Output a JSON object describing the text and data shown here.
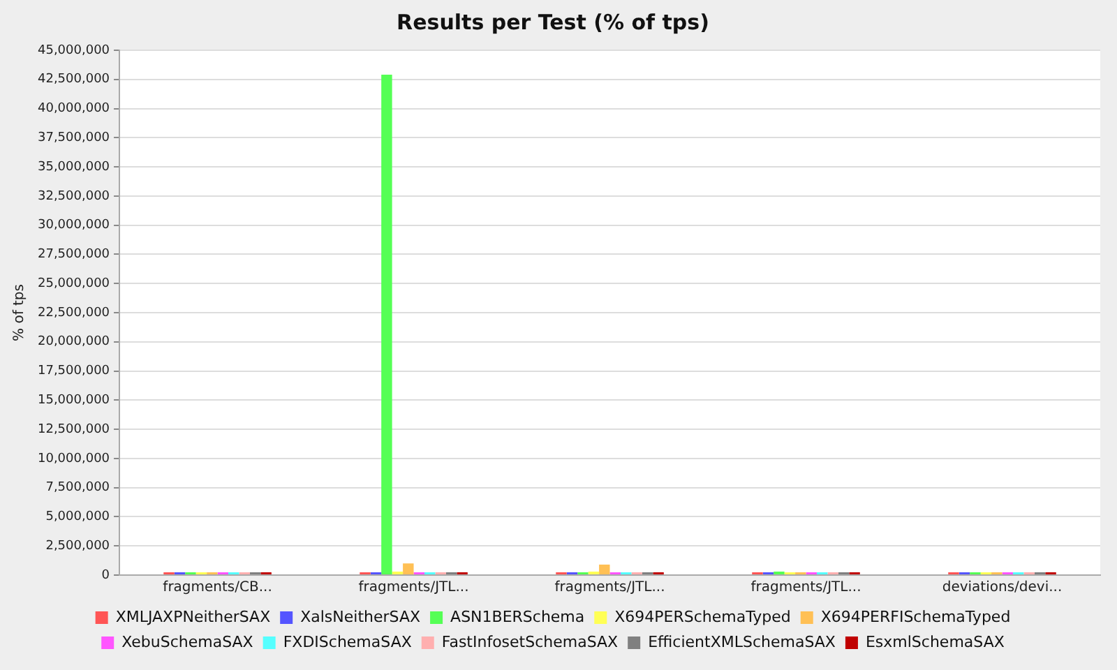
{
  "chart_data": {
    "type": "bar",
    "title": "Results per Test (% of tps)",
    "ylabel": "% of tps",
    "categories": [
      "fragments/CB...",
      "fragments/JTL...",
      "fragments/JTL...",
      "fragments/JTL...",
      "deviations/devi..."
    ],
    "series": [
      {
        "name": "XMLJAXPNeitherSAX",
        "color": "#ff5555",
        "values": [
          0,
          0,
          0,
          0,
          0
        ]
      },
      {
        "name": "XalsNeitherSAX",
        "color": "#5555ff",
        "values": [
          0,
          0,
          0,
          0,
          0
        ]
      },
      {
        "name": "ASN1BERSchema",
        "color": "#55ff55",
        "values": [
          0,
          42900000,
          100000,
          300000,
          0
        ]
      },
      {
        "name": "X694PERSchemaTyped",
        "color": "#ffff55",
        "values": [
          0,
          300000,
          300000,
          200000,
          0
        ]
      },
      {
        "name": "X694PERFISchemaTyped",
        "color": "#ffc055",
        "values": [
          0,
          1000000,
          900000,
          200000,
          0
        ]
      },
      {
        "name": "XebuSchemaSAX",
        "color": "#ff55ff",
        "values": [
          0,
          0,
          0,
          0,
          0
        ]
      },
      {
        "name": "FXDISchemaSAX",
        "color": "#55ffff",
        "values": [
          0,
          0,
          0,
          0,
          0
        ]
      },
      {
        "name": "FastInfosetSchemaSAX",
        "color": "#ffafaf",
        "values": [
          0,
          0,
          0,
          0,
          0
        ]
      },
      {
        "name": "EfficientXMLSchemaSAX",
        "color": "#808080",
        "values": [
          0,
          0,
          0,
          0,
          0
        ]
      },
      {
        "name": "EsxmlSchemaSAX",
        "color": "#c00000",
        "values": [
          0,
          0,
          0,
          0,
          0
        ]
      }
    ],
    "ylim": [
      0,
      45000000
    ],
    "yticks": [
      0,
      {
        "value": 2500000,
        "label": "2,500,000"
      },
      {
        "value": 5000000,
        "label": "5,000,000"
      },
      {
        "value": 7500000,
        "label": "7,500,000"
      },
      {
        "value": 10000000,
        "label": "10,000,000"
      },
      {
        "value": 12500000,
        "label": "12,500,000"
      },
      {
        "value": 15000000,
        "label": "15,000,000"
      },
      {
        "value": 17500000,
        "label": "17,500,000"
      },
      {
        "value": 20000000,
        "label": "20,000,000"
      },
      {
        "value": 22500000,
        "label": "22,500,000"
      },
      {
        "value": 25000000,
        "label": "25,000,000"
      },
      {
        "value": 27500000,
        "label": "27,500,000"
      },
      {
        "value": 30000000,
        "label": "30,000,000"
      },
      {
        "value": 32500000,
        "label": "32,500,000"
      },
      {
        "value": 35000000,
        "label": "35,000,000"
      },
      {
        "value": 37500000,
        "label": "37,500,000"
      },
      {
        "value": 40000000,
        "label": "40,000,000"
      },
      {
        "value": 42500000,
        "label": "42,500,000"
      },
      {
        "value": 45000000,
        "label": "45,000,000"
      }
    ],
    "grid": "y",
    "legend": "bottom"
  }
}
